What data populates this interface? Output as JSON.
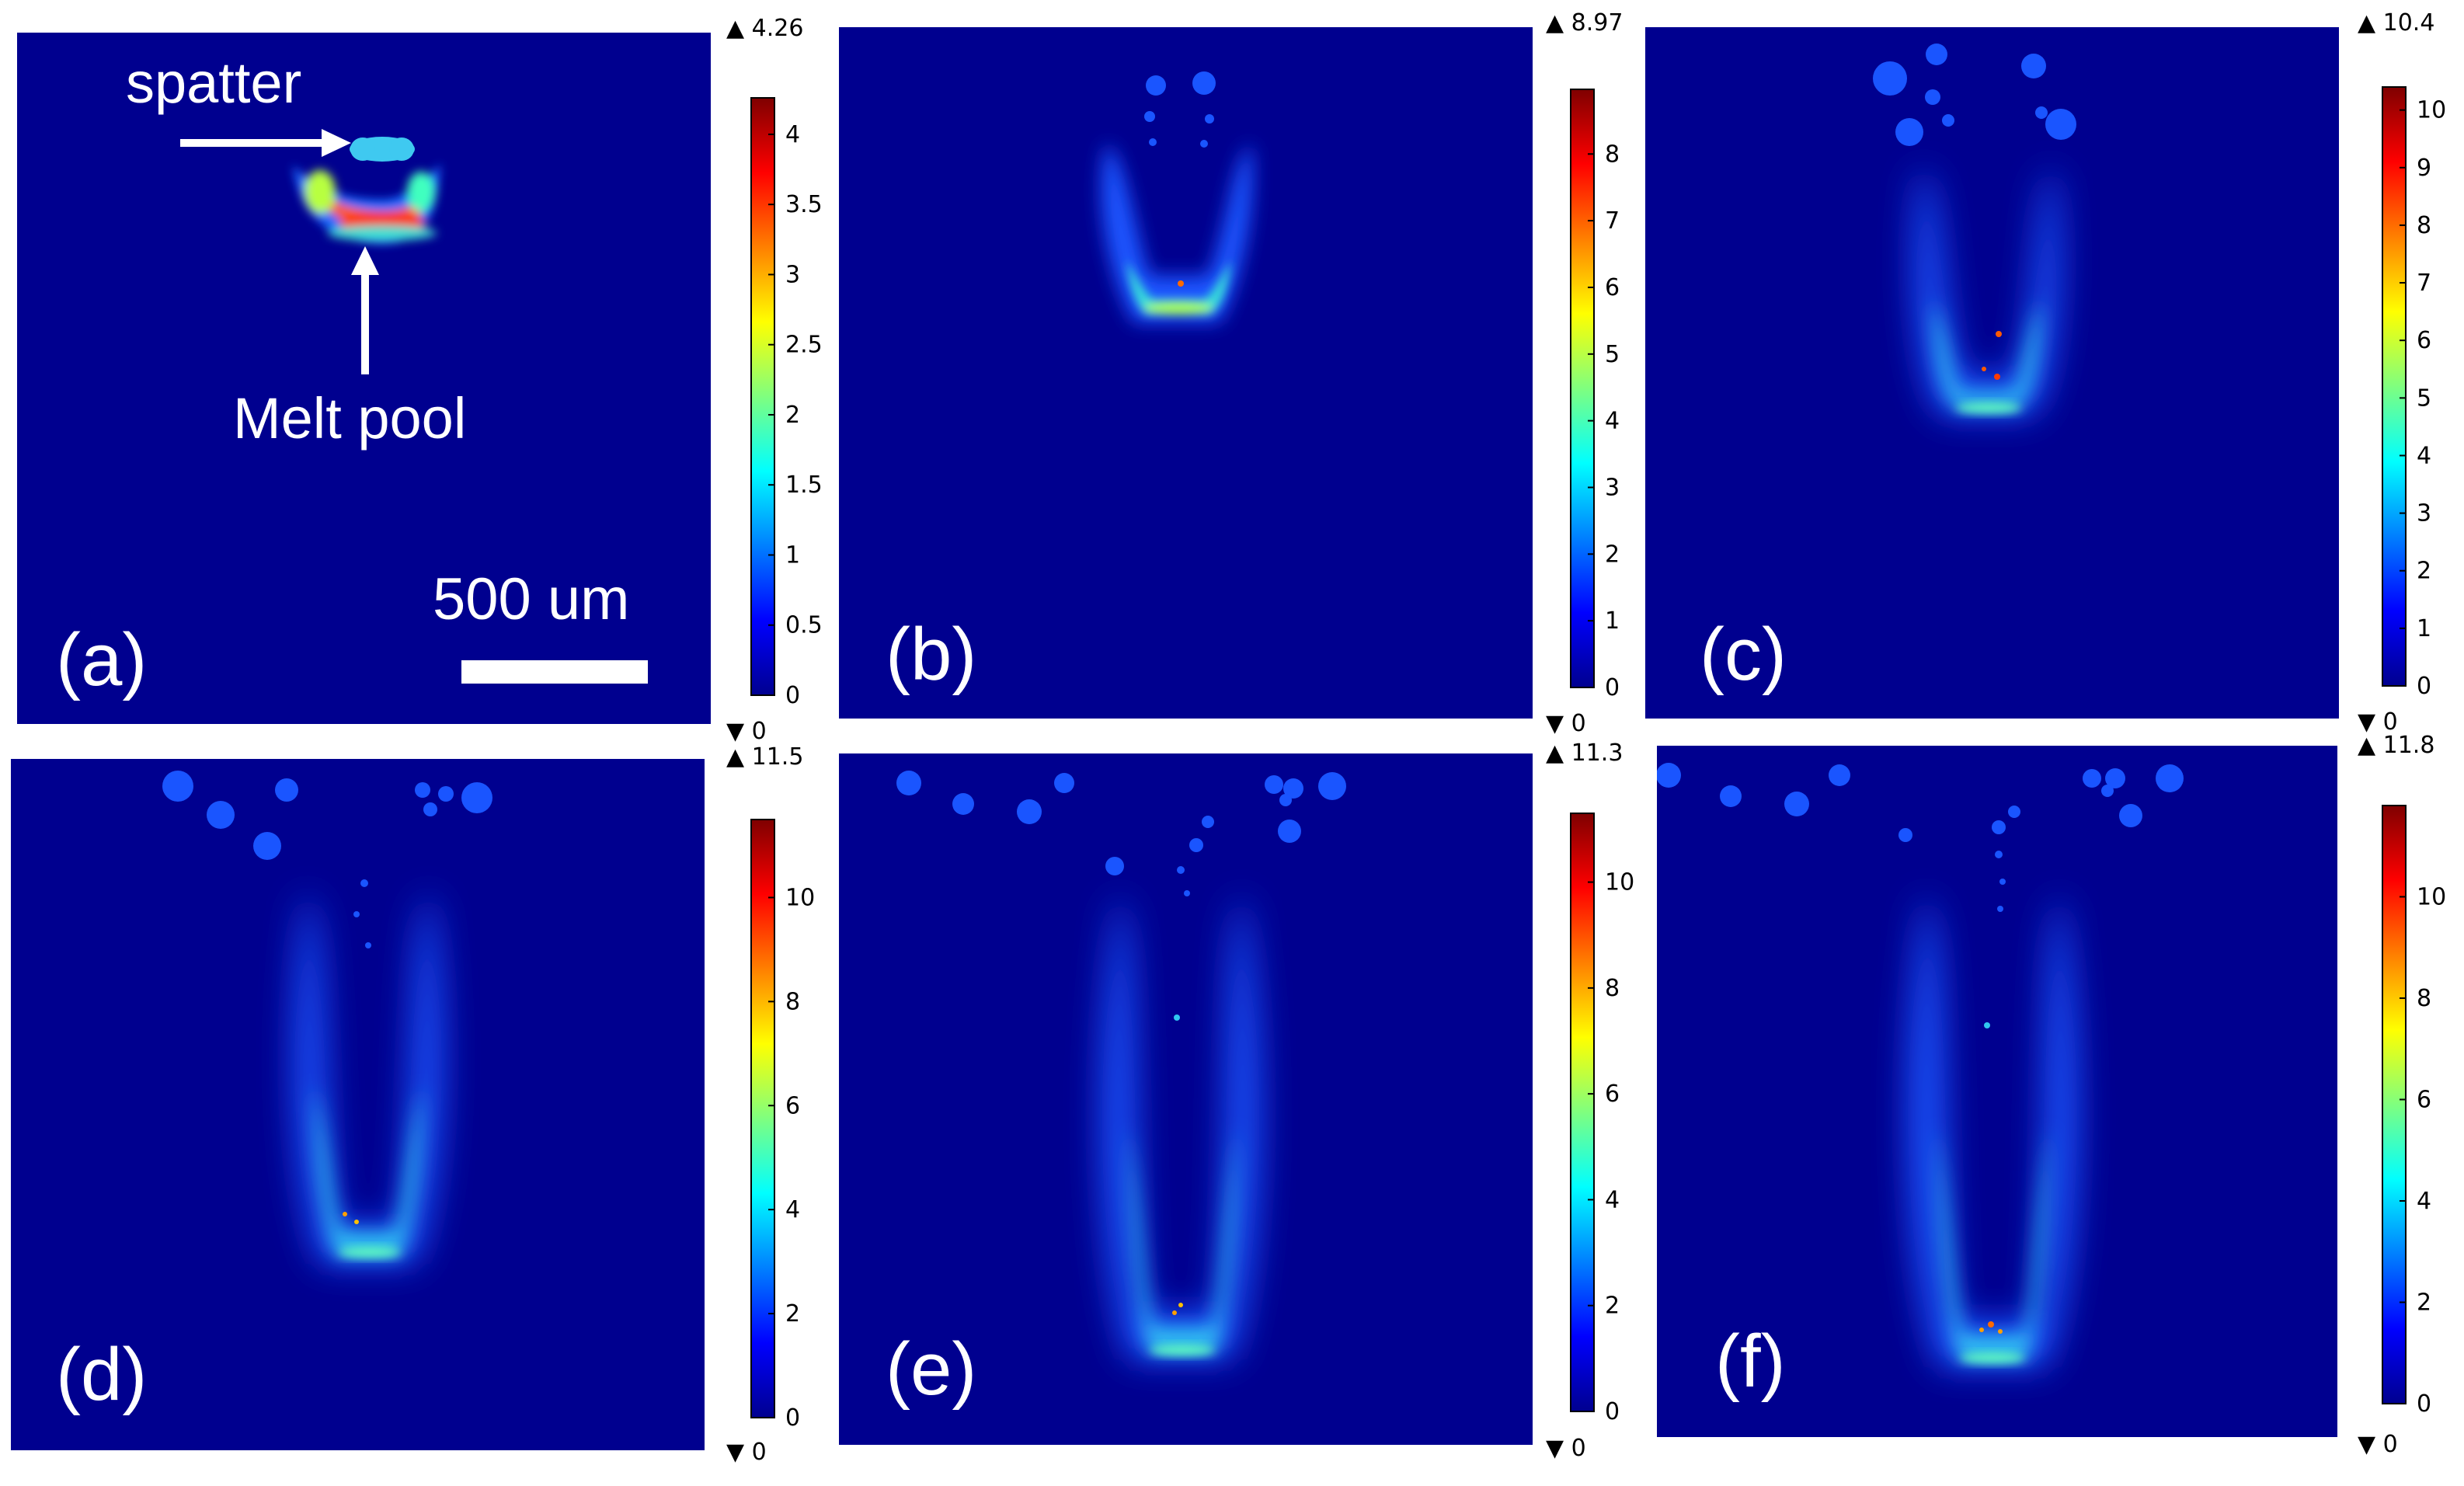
{
  "figure": {
    "background_color": "#00008F",
    "colormap": "jet",
    "panels": [
      {
        "id": "a",
        "label": "(a)",
        "max_label": "4.26",
        "min_label": "0",
        "vmax": 4.26,
        "ticks": [
          0,
          0.5,
          1,
          1.5,
          2,
          2.5,
          3,
          3.5,
          4
        ],
        "tick_labels": [
          "0",
          "0.5",
          "1",
          "1.5",
          "2",
          "2.5",
          "3",
          "3.5",
          "4"
        ]
      },
      {
        "id": "b",
        "label": "(b)",
        "max_label": "8.97",
        "min_label": "0",
        "vmax": 8.97,
        "ticks": [
          0,
          1,
          2,
          3,
          4,
          5,
          6,
          7,
          8
        ],
        "tick_labels": [
          "0",
          "1",
          "2",
          "3",
          "4",
          "5",
          "6",
          "7",
          "8"
        ]
      },
      {
        "id": "c",
        "label": "(c)",
        "max_label": "10.4",
        "min_label": "0",
        "vmax": 10.4,
        "ticks": [
          0,
          1,
          2,
          3,
          4,
          5,
          6,
          7,
          8,
          9,
          10
        ],
        "tick_labels": [
          "0",
          "1",
          "2",
          "3",
          "4",
          "5",
          "6",
          "7",
          "8",
          "9",
          "10"
        ]
      },
      {
        "id": "d",
        "label": "(d)",
        "max_label": "11.5",
        "min_label": "0",
        "vmax": 11.5,
        "ticks": [
          0,
          2,
          4,
          6,
          8,
          10
        ],
        "tick_labels": [
          "0",
          "2",
          "4",
          "6",
          "8",
          "10"
        ]
      },
      {
        "id": "e",
        "label": "(e)",
        "max_label": "11.3",
        "min_label": "0",
        "vmax": 11.3,
        "ticks": [
          0,
          2,
          4,
          6,
          8,
          10
        ],
        "tick_labels": [
          "0",
          "2",
          "4",
          "6",
          "8",
          "10"
        ]
      },
      {
        "id": "f",
        "label": "(f)",
        "max_label": "11.8",
        "min_label": "0",
        "vmax": 11.8,
        "ticks": [
          0,
          2,
          4,
          6,
          8,
          10
        ],
        "tick_labels": [
          "0",
          "2",
          "4",
          "6",
          "8",
          "10"
        ]
      }
    ],
    "annotations": {
      "spatter_label": "spatter",
      "melt_pool_label": "Melt pool",
      "scale_bar_label": "500 um"
    },
    "max_marker": "▲",
    "min_marker": "▼"
  }
}
